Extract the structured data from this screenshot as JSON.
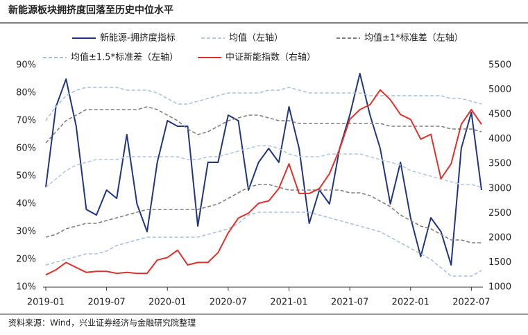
{
  "chart_data": {
    "type": "line",
    "title": "新能源板块拥挤度回落至历史中位水平",
    "source": "资料来源：Wind，兴业证券经济与金融研究院整理",
    "x": [
      "2019-01",
      "2019-02",
      "2019-03",
      "2019-04",
      "2019-05",
      "2019-06",
      "2019-07",
      "2019-08",
      "2019-09",
      "2019-10",
      "2019-11",
      "2019-12",
      "2020-01",
      "2020-02",
      "2020-03",
      "2020-04",
      "2020-05",
      "2020-06",
      "2020-07",
      "2020-08",
      "2020-09",
      "2020-10",
      "2020-11",
      "2020-12",
      "2021-01",
      "2021-02",
      "2021-03",
      "2021-04",
      "2021-05",
      "2021-06",
      "2021-07",
      "2021-08",
      "2021-09",
      "2021-10",
      "2021-11",
      "2021-12",
      "2022-01",
      "2022-02",
      "2022-03",
      "2022-04",
      "2022-05",
      "2022-06",
      "2022-07",
      "2022-08"
    ],
    "xticks": [
      "2019-01",
      "2019-07",
      "2020-01",
      "2020-07",
      "2021-01",
      "2021-07",
      "2022-01",
      "2022-07"
    ],
    "ylim": [
      10,
      90
    ],
    "yticks": [
      {
        "value": 10,
        "label": "10%"
      },
      {
        "value": 20,
        "label": "20%"
      },
      {
        "value": 30,
        "label": "30%"
      },
      {
        "value": 40,
        "label": "40%"
      },
      {
        "value": 50,
        "label": "50%"
      },
      {
        "value": 60,
        "label": "60%"
      },
      {
        "value": 70,
        "label": "70%"
      },
      {
        "value": 80,
        "label": "80%"
      },
      {
        "value": 90,
        "label": "90%"
      }
    ],
    "y2lim": [
      1000,
      5500
    ],
    "y2ticks": [
      1000,
      1500,
      2000,
      2500,
      3000,
      3500,
      4000,
      4500,
      5000,
      5500
    ],
    "series": [
      {
        "name": "新能源-拥挤度指标",
        "color": "#1f3580",
        "line_style": "solid",
        "axis": "y",
        "values": [
          46,
          75,
          85,
          68,
          38,
          36,
          45,
          42,
          65,
          40,
          30,
          55,
          70,
          68,
          68,
          32,
          55,
          55,
          72,
          70,
          45,
          55,
          60,
          55,
          75,
          60,
          33,
          45,
          40,
          60,
          72,
          87,
          72,
          60,
          40,
          55,
          35,
          21,
          35,
          30,
          18,
          60,
          73,
          45
        ]
      },
      {
        "name": "均值（左轴）",
        "color": "#b4c8e4",
        "line_style": "dashed",
        "axis": "y",
        "values": [
          46,
          49,
          52,
          54,
          55,
          56,
          56,
          56,
          57,
          57,
          57,
          57,
          57,
          57,
          56,
          56,
          57,
          57,
          58,
          59,
          60,
          61,
          61,
          60,
          58,
          57,
          57,
          57,
          58,
          58,
          58,
          58,
          57,
          56,
          55,
          54,
          52,
          51,
          50,
          49,
          48,
          47,
          47,
          46
        ]
      },
      {
        "name": "均值±1*标准差（左轴）",
        "color": "#7f7f7f",
        "line_style": "dashed",
        "axis": "y",
        "values": [
          62,
          66,
          70,
          72,
          74,
          74,
          74,
          74,
          74,
          74,
          75,
          74,
          72,
          70,
          67,
          65,
          66,
          68,
          70,
          71,
          72,
          72,
          71,
          70,
          70,
          69,
          69,
          69,
          69,
          69,
          69,
          69,
          69,
          69,
          68,
          68,
          68,
          68,
          68,
          68,
          67,
          67,
          67,
          66
        ]
      },
      {
        "name": "均值±1*标准差（左轴）",
        "color": "#7f7f7f",
        "line_style": "dashed",
        "axis": "y",
        "legend": false,
        "values": [
          28,
          29,
          31,
          32,
          33,
          33,
          34,
          35,
          36,
          37,
          38,
          38,
          38,
          38,
          38,
          38,
          39,
          40,
          42,
          44,
          46,
          47,
          47,
          46,
          45,
          45,
          45,
          45,
          45,
          45,
          44,
          44,
          43,
          41,
          39,
          36,
          34,
          32,
          31,
          29,
          27,
          27,
          26,
          26
        ]
      },
      {
        "name": "均值±1.5*标准差（左轴）",
        "color": "#a9c1e0",
        "line_style": "dashed",
        "axis": "y",
        "values": [
          70,
          75,
          79,
          81,
          82,
          82,
          82,
          82,
          81,
          81,
          81,
          80,
          78,
          76,
          76,
          77,
          78,
          79,
          80,
          80,
          80,
          80,
          81,
          81,
          82,
          81,
          80,
          80,
          80,
          80,
          80,
          80,
          79,
          79,
          79,
          79,
          79,
          79,
          79,
          79,
          78,
          78,
          77,
          76
        ]
      },
      {
        "name": "均值±1.5*标准差（左轴）",
        "color": "#a9c1e0",
        "line_style": "dashed",
        "axis": "y",
        "legend": false,
        "values": [
          18,
          19,
          20,
          21,
          22,
          22,
          23,
          25,
          26,
          27,
          28,
          28,
          28,
          28,
          28,
          28,
          29,
          30,
          31,
          33,
          36,
          37,
          37,
          37,
          37,
          37,
          37,
          36,
          35,
          34,
          33,
          32,
          31,
          30,
          28,
          26,
          24,
          22,
          20,
          17,
          14,
          14,
          14,
          16
        ]
      },
      {
        "name": "中证新能指数（右轴）",
        "color": "#e0302a",
        "line_style": "solid",
        "axis": "y2",
        "values": [
          1250,
          1350,
          1500,
          1400,
          1300,
          1320,
          1320,
          1280,
          1300,
          1280,
          1280,
          1550,
          1600,
          1750,
          1450,
          1500,
          1500,
          1700,
          2100,
          2400,
          2500,
          2700,
          2750,
          3000,
          3500,
          2900,
          2900,
          3000,
          3300,
          3800,
          4400,
          4600,
          4700,
          5000,
          4800,
          4500,
          4400,
          4000,
          4100,
          3200,
          3500,
          4300,
          4600,
          4300
        ]
      }
    ]
  }
}
